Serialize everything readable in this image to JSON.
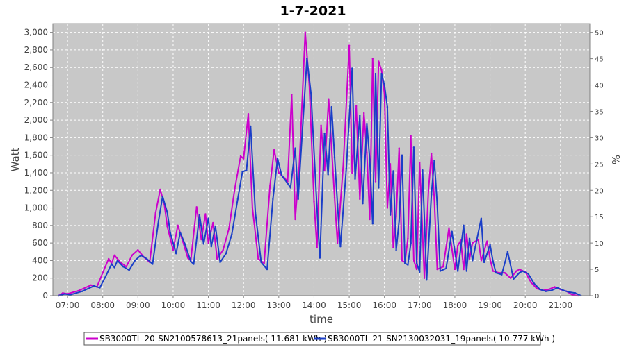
{
  "chart_data": {
    "type": "line",
    "title": "1-7-2021",
    "xlabel": "time",
    "ylabel": "Watt",
    "y2label": "%",
    "x_ticks": [
      "07:00",
      "08:00",
      "09:00",
      "10:00",
      "11:00",
      "12:00",
      "13:00",
      "14:00",
      "15:00",
      "16:00",
      "17:00",
      "18:00",
      "19:00",
      "20:00",
      "21:00"
    ],
    "xlim": [
      "06:35",
      "21:50"
    ],
    "ylim": [
      0,
      3100
    ],
    "y_ticks": [
      "0",
      "200",
      "400",
      "600",
      "800",
      "1,000",
      "1,200",
      "1,400",
      "1,600",
      "1,800",
      "2,000",
      "2,200",
      "2,400",
      "2,600",
      "2,800",
      "3,000"
    ],
    "y2lim": [
      0,
      51.67
    ],
    "y2_ticks": [
      "0",
      "5",
      "10",
      "15",
      "20",
      "25",
      "30",
      "35",
      "40",
      "45",
      "50"
    ],
    "grid": true,
    "legend_position": "bottom",
    "series": [
      {
        "name": "SB3000TL-20-SN2100578613_21panels( 11.681 kWh )",
        "color": "#cc00cc",
        "points": [
          [
            "06:45",
            0
          ],
          [
            "06:52",
            30
          ],
          [
            "07:00",
            20
          ],
          [
            "07:10",
            40
          ],
          [
            "07:20",
            60
          ],
          [
            "07:30",
            90
          ],
          [
            "07:40",
            120
          ],
          [
            "07:50",
            100
          ],
          [
            "08:00",
            260
          ],
          [
            "08:10",
            420
          ],
          [
            "08:15",
            370
          ],
          [
            "08:20",
            460
          ],
          [
            "08:30",
            380
          ],
          [
            "08:40",
            330
          ],
          [
            "08:50",
            460
          ],
          [
            "09:00",
            520
          ],
          [
            "09:10",
            440
          ],
          [
            "09:20",
            380
          ],
          [
            "09:30",
            940
          ],
          [
            "09:38",
            1210
          ],
          [
            "09:45",
            1040
          ],
          [
            "09:50",
            790
          ],
          [
            "10:00",
            520
          ],
          [
            "10:08",
            800
          ],
          [
            "10:15",
            650
          ],
          [
            "10:25",
            430
          ],
          [
            "10:30",
            400
          ],
          [
            "10:40",
            1010
          ],
          [
            "10:48",
            640
          ],
          [
            "10:55",
            930
          ],
          [
            "11:00",
            600
          ],
          [
            "11:08",
            830
          ],
          [
            "11:15",
            420
          ],
          [
            "11:25",
            520
          ],
          [
            "11:35",
            760
          ],
          [
            "11:45",
            1220
          ],
          [
            "11:55",
            1590
          ],
          [
            "12:00",
            1560
          ],
          [
            "12:08",
            2070
          ],
          [
            "12:15",
            1000
          ],
          [
            "12:25",
            420
          ],
          [
            "12:35",
            370
          ],
          [
            "12:45",
            1250
          ],
          [
            "12:52",
            1660
          ],
          [
            "13:00",
            1400
          ],
          [
            "13:10",
            1340
          ],
          [
            "13:15",
            1300
          ],
          [
            "13:22",
            2290
          ],
          [
            "13:28",
            870
          ],
          [
            "13:35",
            1500
          ],
          [
            "13:45",
            3000
          ],
          [
            "13:52",
            2400
          ],
          [
            "14:00",
            1070
          ],
          [
            "14:05",
            550
          ],
          [
            "14:12",
            1940
          ],
          [
            "14:18",
            1430
          ],
          [
            "14:25",
            2240
          ],
          [
            "14:30",
            1670
          ],
          [
            "14:35",
            1120
          ],
          [
            "14:40",
            600
          ],
          [
            "14:50",
            1500
          ],
          [
            "15:00",
            2850
          ],
          [
            "15:05",
            1400
          ],
          [
            "15:12",
            2160
          ],
          [
            "15:18",
            1100
          ],
          [
            "15:25",
            2080
          ],
          [
            "15:30",
            1630
          ],
          [
            "15:35",
            870
          ],
          [
            "15:40",
            2700
          ],
          [
            "15:45",
            1300
          ],
          [
            "15:50",
            2670
          ],
          [
            "15:55",
            2570
          ],
          [
            "16:00",
            2300
          ],
          [
            "16:05",
            1000
          ],
          [
            "16:10",
            1500
          ],
          [
            "16:15",
            550
          ],
          [
            "16:20",
            900
          ],
          [
            "16:25",
            1680
          ],
          [
            "16:30",
            400
          ],
          [
            "16:35",
            380
          ],
          [
            "16:40",
            650
          ],
          [
            "16:45",
            1820
          ],
          [
            "16:50",
            400
          ],
          [
            "16:55",
            300
          ],
          [
            "17:00",
            1520
          ],
          [
            "17:08",
            200
          ],
          [
            "17:15",
            1200
          ],
          [
            "17:20",
            1620
          ],
          [
            "17:25",
            1100
          ],
          [
            "17:30",
            300
          ],
          [
            "17:40",
            330
          ],
          [
            "17:50",
            770
          ],
          [
            "18:00",
            300
          ],
          [
            "18:05",
            570
          ],
          [
            "18:10",
            630
          ],
          [
            "18:15",
            300
          ],
          [
            "18:20",
            700
          ],
          [
            "18:25",
            420
          ],
          [
            "18:30",
            600
          ],
          [
            "18:40",
            640
          ],
          [
            "18:45",
            400
          ],
          [
            "18:55",
            620
          ],
          [
            "19:00",
            420
          ],
          [
            "19:05",
            280
          ],
          [
            "19:15",
            260
          ],
          [
            "19:25",
            260
          ],
          [
            "19:35",
            200
          ],
          [
            "19:45",
            280
          ],
          [
            "19:50",
            300
          ],
          [
            "20:00",
            270
          ],
          [
            "20:10",
            150
          ],
          [
            "20:20",
            80
          ],
          [
            "20:30",
            60
          ],
          [
            "20:40",
            70
          ],
          [
            "20:50",
            100
          ],
          [
            "21:00",
            70
          ],
          [
            "21:10",
            50
          ],
          [
            "21:20",
            10
          ],
          [
            "21:30",
            0
          ]
        ]
      },
      {
        "name": "SB3000TL-21-SN2130032031_19panels( 10.777 kWh )",
        "color": "#1a3ec8",
        "points": [
          [
            "06:45",
            0
          ],
          [
            "06:55",
            20
          ],
          [
            "07:05",
            10
          ],
          [
            "07:15",
            30
          ],
          [
            "07:25",
            50
          ],
          [
            "07:35",
            80
          ],
          [
            "07:45",
            110
          ],
          [
            "07:55",
            90
          ],
          [
            "08:05",
            220
          ],
          [
            "08:15",
            360
          ],
          [
            "08:20",
            320
          ],
          [
            "08:25",
            400
          ],
          [
            "08:35",
            330
          ],
          [
            "08:45",
            290
          ],
          [
            "08:55",
            400
          ],
          [
            "09:05",
            460
          ],
          [
            "09:15",
            420
          ],
          [
            "09:25",
            360
          ],
          [
            "09:35",
            850
          ],
          [
            "09:42",
            1130
          ],
          [
            "09:50",
            950
          ],
          [
            "09:55",
            720
          ],
          [
            "10:05",
            480
          ],
          [
            "10:12",
            720
          ],
          [
            "10:20",
            590
          ],
          [
            "10:30",
            390
          ],
          [
            "10:35",
            360
          ],
          [
            "10:45",
            920
          ],
          [
            "10:52",
            590
          ],
          [
            "11:00",
            880
          ],
          [
            "11:05",
            560
          ],
          [
            "11:12",
            790
          ],
          [
            "11:20",
            380
          ],
          [
            "11:30",
            480
          ],
          [
            "11:40",
            700
          ],
          [
            "11:50",
            1100
          ],
          [
            "11:58",
            1410
          ],
          [
            "12:05",
            1430
          ],
          [
            "12:12",
            1930
          ],
          [
            "12:20",
            950
          ],
          [
            "12:30",
            380
          ],
          [
            "12:40",
            300
          ],
          [
            "12:50",
            1100
          ],
          [
            "12:58",
            1560
          ],
          [
            "13:05",
            1370
          ],
          [
            "13:15",
            1280
          ],
          [
            "13:20",
            1230
          ],
          [
            "13:28",
            1680
          ],
          [
            "13:33",
            1100
          ],
          [
            "13:38",
            1650
          ],
          [
            "13:48",
            2700
          ],
          [
            "13:55",
            2300
          ],
          [
            "14:05",
            1000
          ],
          [
            "14:10",
            430
          ],
          [
            "14:18",
            1850
          ],
          [
            "14:24",
            1380
          ],
          [
            "14:30",
            2150
          ],
          [
            "14:35",
            1580
          ],
          [
            "14:40",
            1040
          ],
          [
            "14:45",
            560
          ],
          [
            "14:55",
            1450
          ],
          [
            "15:05",
            2590
          ],
          [
            "15:10",
            1330
          ],
          [
            "15:18",
            2050
          ],
          [
            "15:23",
            1050
          ],
          [
            "15:30",
            1960
          ],
          [
            "15:35",
            1550
          ],
          [
            "15:40",
            820
          ],
          [
            "15:45",
            2530
          ],
          [
            "15:50",
            1230
          ],
          [
            "15:55",
            2530
          ],
          [
            "16:00",
            2400
          ],
          [
            "16:05",
            2150
          ],
          [
            "16:10",
            920
          ],
          [
            "16:15",
            1420
          ],
          [
            "16:20",
            520
          ],
          [
            "16:25",
            850
          ],
          [
            "16:30",
            1600
          ],
          [
            "16:35",
            370
          ],
          [
            "16:40",
            350
          ],
          [
            "16:45",
            600
          ],
          [
            "16:50",
            1690
          ],
          [
            "16:55",
            370
          ],
          [
            "17:00",
            270
          ],
          [
            "17:05",
            1430
          ],
          [
            "17:12",
            180
          ],
          [
            "17:20",
            1150
          ],
          [
            "17:25",
            1540
          ],
          [
            "17:30",
            1040
          ],
          [
            "17:35",
            280
          ],
          [
            "17:45",
            310
          ],
          [
            "17:55",
            730
          ],
          [
            "18:05",
            280
          ],
          [
            "18:10",
            540
          ],
          [
            "18:15",
            800
          ],
          [
            "18:20",
            280
          ],
          [
            "18:25",
            650
          ],
          [
            "18:30",
            400
          ],
          [
            "18:35",
            560
          ],
          [
            "18:45",
            880
          ],
          [
            "18:50",
            380
          ],
          [
            "19:00",
            580
          ],
          [
            "19:05",
            390
          ],
          [
            "19:10",
            260
          ],
          [
            "19:20",
            240
          ],
          [
            "19:30",
            500
          ],
          [
            "19:40",
            190
          ],
          [
            "19:50",
            260
          ],
          [
            "19:55",
            280
          ],
          [
            "20:05",
            250
          ],
          [
            "20:15",
            140
          ],
          [
            "20:25",
            70
          ],
          [
            "20:35",
            50
          ],
          [
            "20:45",
            60
          ],
          [
            "20:55",
            90
          ],
          [
            "21:05",
            60
          ],
          [
            "21:15",
            40
          ],
          [
            "21:25",
            30
          ],
          [
            "21:35",
            0
          ]
        ]
      }
    ]
  }
}
